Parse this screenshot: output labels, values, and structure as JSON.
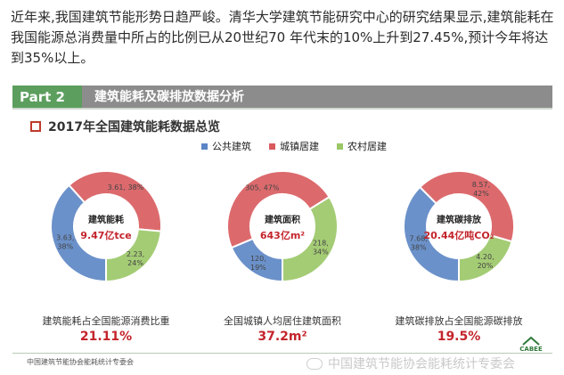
{
  "intro_text": "近年来,我国建筑节能形势日趋严峻。清华大学建筑节能研究中心的研究结果显示,建筑能耗在我国能源总消费量中所占的比例已从20世纪70 年代末的10%上升到27.45%,预计今年将达到35%以上。",
  "part": {
    "label": "Part 2",
    "title": "建筑能耗及碳排放数据分析"
  },
  "subtitle": "2017年全国建筑能耗数据总览",
  "colors": {
    "public": "#5b86c5",
    "urban": "#d95a5e",
    "rural": "#9bc767"
  },
  "legend": [
    "公共建筑",
    "城镇居建",
    "农村居建"
  ],
  "chart_data": [
    {
      "type": "pie",
      "title": "建筑能耗",
      "center_value": "9.47亿tce",
      "categories": [
        "公共建筑",
        "城镇居建",
        "农村居建"
      ],
      "values": [
        3.63,
        3.61,
        2.23
      ],
      "percents": [
        38,
        38,
        24
      ],
      "labels": [
        [
          "3.63,",
          "38%"
        ],
        [
          "3.61, 38%"
        ],
        [
          "2.23,",
          "24%"
        ]
      ],
      "caption": "建筑能耗占全国能源消费比重",
      "caption_value": "21.11%"
    },
    {
      "type": "pie",
      "title": "建筑面积",
      "center_value": "643亿m²",
      "categories": [
        "公共建筑",
        "城镇居建",
        "农村居建"
      ],
      "values": [
        120,
        305,
        218
      ],
      "percents": [
        19,
        47,
        34
      ],
      "labels": [
        [
          "120,",
          "19%"
        ],
        [
          "305, 47%"
        ],
        [
          "218,",
          "34%"
        ]
      ],
      "caption": "全国城镇人均居住建筑面积",
      "caption_value": "37.2m²"
    },
    {
      "type": "pie",
      "title": "建筑碳排放",
      "center_value": "20.44亿吨CO₂",
      "categories": [
        "公共建筑",
        "城镇居建",
        "农村居建"
      ],
      "values": [
        7.68,
        8.57,
        4.2
      ],
      "percents": [
        38,
        42,
        20
      ],
      "labels": [
        [
          "7.68,",
          "38%"
        ],
        [
          "8.57,",
          "42%"
        ],
        [
          "4.20,",
          "20%"
        ]
      ],
      "caption": "建筑碳排放占全国能源碳排放",
      "caption_value": "19.5%"
    }
  ],
  "footer": {
    "left": "中国建筑节能协会能耗统计专委会",
    "watermark": "中国建筑节能协会能耗统计专委会",
    "logo": "CABEE"
  }
}
